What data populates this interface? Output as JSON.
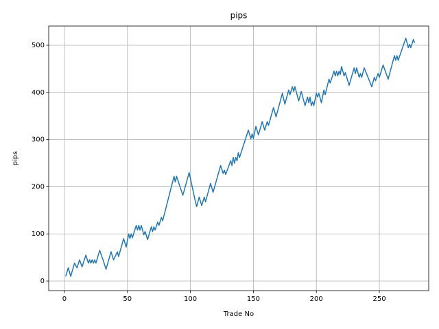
{
  "chart_data": {
    "type": "line",
    "title": "pips",
    "x_label": "Trade No",
    "y_label": "pips",
    "x": [
      1,
      3,
      5,
      8,
      10,
      12,
      14,
      17,
      19,
      20,
      21,
      22,
      23,
      24,
      25,
      28,
      31,
      33,
      37,
      39,
      42,
      43,
      47,
      49,
      51,
      52,
      53,
      54,
      57,
      58,
      59,
      60,
      61,
      63,
      64,
      66,
      69,
      70,
      71,
      72,
      74,
      75,
      77,
      78,
      87,
      88,
      89,
      94,
      99,
      104,
      105,
      107,
      109,
      111,
      112,
      116,
      118,
      124,
      126,
      127,
      128,
      132,
      133,
      134,
      135,
      136,
      137,
      138,
      139,
      146,
      148,
      149,
      150,
      152,
      154,
      157,
      159,
      161,
      162,
      166,
      168,
      173,
      175,
      178,
      179,
      181,
      182,
      183,
      186,
      188,
      191,
      193,
      194,
      195,
      196,
      197,
      198,
      200,
      201,
      202,
      204,
      206,
      207,
      210,
      211,
      214,
      215,
      216,
      217,
      218,
      219,
      220,
      222,
      223,
      226,
      230,
      231,
      232,
      234,
      235,
      236,
      238,
      244,
      246,
      247,
      249,
      250,
      253,
      257,
      262,
      263,
      264,
      265,
      271,
      273,
      274,
      275,
      277,
      278
    ],
    "values": [
      10,
      28,
      10,
      38,
      28,
      45,
      30,
      55,
      38,
      45,
      38,
      45,
      38,
      45,
      38,
      65,
      42,
      25,
      62,
      45,
      62,
      52,
      90,
      72,
      100,
      90,
      100,
      92,
      118,
      108,
      118,
      108,
      118,
      98,
      105,
      88,
      115,
      105,
      115,
      108,
      125,
      118,
      135,
      128,
      222,
      210,
      222,
      182,
      230,
      168,
      158,
      178,
      160,
      178,
      168,
      207,
      188,
      245,
      228,
      235,
      226,
      255,
      245,
      262,
      250,
      262,
      255,
      272,
      262,
      320,
      302,
      312,
      302,
      328,
      310,
      338,
      320,
      338,
      330,
      368,
      348,
      398,
      375,
      405,
      395,
      412,
      402,
      412,
      382,
      402,
      372,
      390,
      378,
      390,
      372,
      380,
      372,
      398,
      390,
      398,
      378,
      405,
      395,
      428,
      420,
      445,
      435,
      445,
      435,
      445,
      438,
      455,
      435,
      442,
      415,
      452,
      440,
      452,
      432,
      440,
      432,
      452,
      412,
      432,
      425,
      440,
      432,
      458,
      428,
      478,
      468,
      478,
      468,
      515,
      495,
      502,
      495,
      512,
      505
    ],
    "color": "#1f77b4",
    "xlim": [
      -12.5,
      289.2
    ],
    "ylim": [
      -20.3,
      540.7
    ],
    "xticks": [
      0,
      50,
      100,
      150,
      200,
      250
    ],
    "yticks": [
      0,
      100,
      200,
      300,
      400,
      500
    ],
    "grid": true
  }
}
